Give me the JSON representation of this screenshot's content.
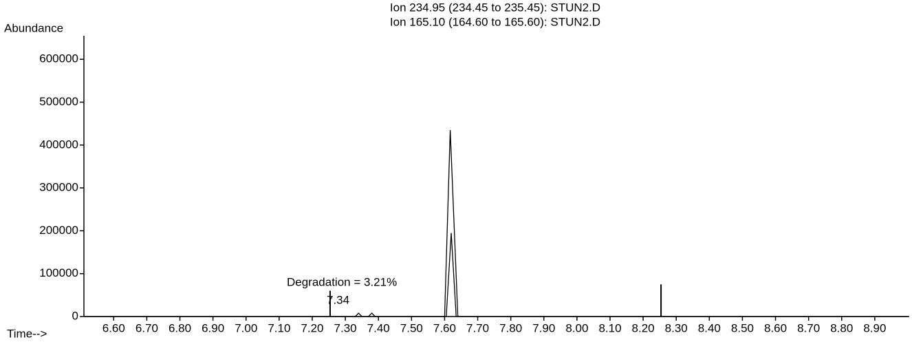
{
  "chart_data": {
    "type": "line",
    "title_lines": [
      "Ion 234.95 (234.45 to 235.45): STUN2.D",
      "Ion 165.10 (164.60 to 165.60): STUN2.D"
    ],
    "y_label": "Abundance",
    "x_label": "Time-->",
    "annotations": [
      "Degradation =  3.21%",
      "7.34"
    ],
    "series": [
      {
        "name": "Ion 234.95",
        "color": "#000000",
        "x": [
          6.51,
          7.33,
          7.34,
          7.35,
          7.37,
          7.38,
          7.39,
          7.6,
          7.617,
          7.64,
          7.66,
          9.0
        ],
        "values": [
          0,
          0,
          8000,
          0,
          0,
          8000,
          0,
          0,
          435000,
          0,
          0,
          0
        ]
      },
      {
        "name": "Ion 165.10",
        "color": "#000000",
        "x": [
          6.51,
          7.605,
          7.62,
          7.635,
          9.0
        ],
        "values": [
          0,
          0,
          195000,
          0,
          0
        ]
      }
    ],
    "markers": {
      "x": [
        7.254,
        8.254
      ],
      "values": [
        60000,
        75000
      ]
    },
    "xlim": [
      6.51,
      9.0
    ],
    "xticks": [
      {
        "value": 6.6,
        "label": "6.60"
      },
      {
        "value": 6.7,
        "label": "6.70"
      },
      {
        "value": 6.8,
        "label": "6.80"
      },
      {
        "value": 6.9,
        "label": "6.90"
      },
      {
        "value": 7.0,
        "label": "7.00"
      },
      {
        "value": 7.1,
        "label": "7.10"
      },
      {
        "value": 7.2,
        "label": "7.20"
      },
      {
        "value": 7.3,
        "label": "7.30"
      },
      {
        "value": 7.4,
        "label": "7.40"
      },
      {
        "value": 7.5,
        "label": "7.50"
      },
      {
        "value": 7.6,
        "label": "7.60"
      },
      {
        "value": 7.7,
        "label": "7.70"
      },
      {
        "value": 7.8,
        "label": "7.80"
      },
      {
        "value": 7.9,
        "label": "7.90"
      },
      {
        "value": 8.0,
        "label": "8.00"
      },
      {
        "value": 8.1,
        "label": "8.10"
      },
      {
        "value": 8.2,
        "label": "8.20"
      },
      {
        "value": 8.3,
        "label": "8.30"
      },
      {
        "value": 8.4,
        "label": "8.40"
      },
      {
        "value": 8.5,
        "label": "8.50"
      },
      {
        "value": 8.6,
        "label": "8.60"
      },
      {
        "value": 8.7,
        "label": "8.70"
      },
      {
        "value": 8.8,
        "label": "8.80"
      },
      {
        "value": 8.9,
        "label": "8.90"
      }
    ],
    "ylim": [
      0,
      650000
    ],
    "yticks": [
      0,
      100000,
      200000,
      300000,
      400000,
      500000,
      600000
    ]
  }
}
